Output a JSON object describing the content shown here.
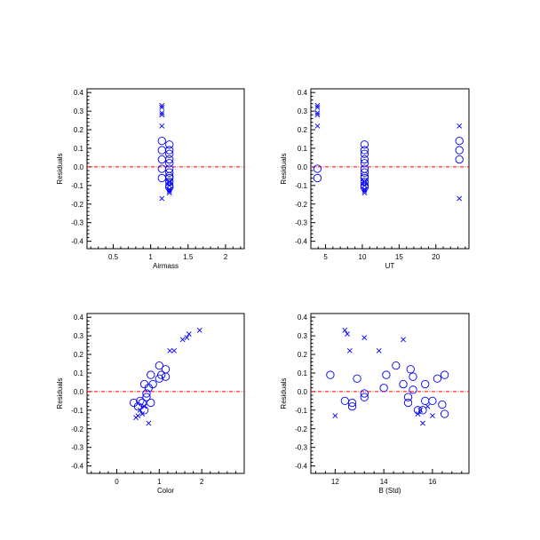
{
  "colors": {
    "marker": "#0000ff",
    "zero_line": "#ff0000",
    "axis": "#000000",
    "background": "#ffffff"
  },
  "chart_data": [
    {
      "type": "scatter",
      "xlabel": "Airmass",
      "ylabel": "Residuals",
      "xlim": [
        0.15,
        2.25
      ],
      "ylim": [
        -0.44,
        0.42
      ],
      "xticks": [
        0.5,
        1.0,
        1.5,
        2.0
      ],
      "xtick_labels": [
        "0.5",
        "1",
        "1.5",
        "2"
      ],
      "yticks": [
        -0.4,
        -0.3,
        -0.2,
        -0.1,
        0.0,
        0.1,
        0.2,
        0.3,
        0.4
      ],
      "ytick_labels": [
        "-0.4",
        "-0.3",
        "-0.2",
        "-0.1",
        "0.0",
        "0.1",
        "0.2",
        "0.3",
        "0.4"
      ],
      "zero_line": 0.0,
      "series": [
        {
          "marker": "cross",
          "points": [
            [
              1.15,
              0.33
            ],
            [
              1.15,
              0.32
            ],
            [
              1.15,
              0.29
            ],
            [
              1.15,
              0.28
            ],
            [
              1.15,
              0.22
            ],
            [
              1.15,
              -0.17
            ],
            [
              1.25,
              -0.08
            ],
            [
              1.25,
              -0.1
            ],
            [
              1.25,
              -0.12
            ],
            [
              1.25,
              -0.13
            ],
            [
              1.25,
              -0.14
            ],
            [
              1.25,
              -0.13
            ]
          ]
        },
        {
          "marker": "circle",
          "points": [
            [
              1.15,
              0.14
            ],
            [
              1.15,
              0.09
            ],
            [
              1.15,
              0.04
            ],
            [
              1.15,
              -0.01
            ],
            [
              1.15,
              -0.06
            ],
            [
              1.25,
              0.12
            ],
            [
              1.25,
              0.09
            ],
            [
              1.25,
              0.07
            ],
            [
              1.25,
              0.04
            ],
            [
              1.25,
              0.02
            ],
            [
              1.25,
              -0.01
            ],
            [
              1.25,
              -0.03
            ],
            [
              1.25,
              -0.05
            ],
            [
              1.25,
              -0.06
            ],
            [
              1.25,
              -0.08
            ],
            [
              1.25,
              -0.1
            ],
            [
              1.25,
              -0.11
            ]
          ]
        }
      ]
    },
    {
      "type": "scatter",
      "xlabel": "UT",
      "ylabel": "Residuals",
      "xlim": [
        3.0,
        24.5
      ],
      "ylim": [
        -0.44,
        0.42
      ],
      "xticks": [
        5,
        10,
        15,
        20
      ],
      "xtick_labels": [
        "5",
        "10",
        "15",
        "20"
      ],
      "yticks": [
        -0.4,
        -0.3,
        -0.2,
        -0.1,
        0.0,
        0.1,
        0.2,
        0.3,
        0.4
      ],
      "ytick_labels": [
        "-0.4",
        "-0.3",
        "-0.2",
        "-0.1",
        "0.0",
        "0.1",
        "0.2",
        "0.3",
        "0.4"
      ],
      "zero_line": 0.0,
      "series": [
        {
          "marker": "cross",
          "points": [
            [
              3.9,
              0.33
            ],
            [
              3.9,
              0.32
            ],
            [
              3.9,
              0.29
            ],
            [
              3.9,
              0.28
            ],
            [
              3.9,
              0.22
            ],
            [
              10.3,
              -0.08
            ],
            [
              10.3,
              -0.1
            ],
            [
              10.3,
              -0.12
            ],
            [
              10.3,
              -0.13
            ],
            [
              10.3,
              -0.14
            ],
            [
              23.2,
              0.22
            ],
            [
              23.2,
              -0.17
            ]
          ]
        },
        {
          "marker": "circle",
          "points": [
            [
              3.9,
              -0.01
            ],
            [
              3.9,
              -0.06
            ],
            [
              10.3,
              0.12
            ],
            [
              10.3,
              0.09
            ],
            [
              10.3,
              0.07
            ],
            [
              10.3,
              0.04
            ],
            [
              10.3,
              0.02
            ],
            [
              10.3,
              -0.01
            ],
            [
              10.3,
              -0.03
            ],
            [
              10.3,
              -0.05
            ],
            [
              10.3,
              -0.06
            ],
            [
              10.3,
              -0.08
            ],
            [
              10.3,
              -0.1
            ],
            [
              10.3,
              -0.11
            ],
            [
              23.2,
              0.14
            ],
            [
              23.2,
              0.09
            ],
            [
              23.2,
              0.04
            ]
          ]
        }
      ]
    },
    {
      "type": "scatter",
      "xlabel": "Color",
      "ylabel": "Residuals",
      "xlim": [
        -0.7,
        3.0
      ],
      "ylim": [
        -0.44,
        0.42
      ],
      "xticks": [
        0,
        1,
        2
      ],
      "xtick_labels": [
        "0",
        "1",
        "2"
      ],
      "yticks": [
        -0.4,
        -0.3,
        -0.2,
        -0.1,
        0.0,
        0.1,
        0.2,
        0.3,
        0.4
      ],
      "ytick_labels": [
        "-0.4",
        "-0.3",
        "-0.2",
        "-0.1",
        "0.0",
        "0.1",
        "0.2",
        "0.3",
        "0.4"
      ],
      "zero_line": 0.0,
      "series": [
        {
          "marker": "cross",
          "points": [
            [
              1.95,
              0.33
            ],
            [
              1.7,
              0.31
            ],
            [
              1.65,
              0.29
            ],
            [
              1.55,
              0.28
            ],
            [
              1.25,
              0.22
            ],
            [
              1.35,
              0.22
            ],
            [
              0.75,
              -0.17
            ],
            [
              0.45,
              -0.14
            ],
            [
              0.5,
              -0.13
            ],
            [
              0.6,
              -0.12
            ],
            [
              0.55,
              -0.1
            ],
            [
              0.65,
              -0.08
            ]
          ]
        },
        {
          "marker": "circle",
          "points": [
            [
              1.0,
              0.14
            ],
            [
              1.15,
              0.12
            ],
            [
              0.8,
              0.09
            ],
            [
              1.05,
              0.09
            ],
            [
              1.15,
              0.08
            ],
            [
              1.0,
              0.07
            ],
            [
              0.85,
              0.04
            ],
            [
              0.65,
              0.04
            ],
            [
              0.75,
              0.02
            ],
            [
              0.7,
              -0.01
            ],
            [
              0.7,
              -0.03
            ],
            [
              0.55,
              -0.05
            ],
            [
              0.4,
              -0.06
            ],
            [
              0.6,
              -0.06
            ],
            [
              0.8,
              -0.06
            ],
            [
              0.5,
              -0.08
            ],
            [
              0.65,
              -0.1
            ]
          ]
        }
      ]
    },
    {
      "type": "scatter",
      "xlabel": "B (Std)",
      "ylabel": "Residuals",
      "xlim": [
        11.0,
        17.5
      ],
      "ylim": [
        -0.44,
        0.42
      ],
      "xticks": [
        12,
        14,
        16
      ],
      "xtick_labels": [
        "12",
        "14",
        "16"
      ],
      "yticks": [
        -0.4,
        -0.3,
        -0.2,
        -0.1,
        0.0,
        0.1,
        0.2,
        0.3,
        0.4
      ],
      "ytick_labels": [
        "-0.4",
        "-0.3",
        "-0.2",
        "-0.1",
        "0.0",
        "0.1",
        "0.2",
        "0.3",
        "0.4"
      ],
      "zero_line": 0.0,
      "series": [
        {
          "marker": "cross",
          "points": [
            [
              12.4,
              0.33
            ],
            [
              12.5,
              0.31
            ],
            [
              13.2,
              0.29
            ],
            [
              14.8,
              0.28
            ],
            [
              12.6,
              0.22
            ],
            [
              13.8,
              0.22
            ],
            [
              12.0,
              -0.13
            ],
            [
              15.4,
              -0.12
            ],
            [
              15.5,
              -0.1
            ],
            [
              16.0,
              -0.13
            ],
            [
              15.6,
              -0.17
            ],
            [
              15.8,
              -0.08
            ]
          ]
        },
        {
          "marker": "circle",
          "points": [
            [
              11.8,
              0.09
            ],
            [
              12.4,
              -0.05
            ],
            [
              12.7,
              -0.06
            ],
            [
              12.7,
              -0.08
            ],
            [
              12.9,
              0.07
            ],
            [
              13.2,
              -0.01
            ],
            [
              13.2,
              -0.03
            ],
            [
              14.0,
              0.02
            ],
            [
              14.1,
              0.09
            ],
            [
              14.5,
              0.14
            ],
            [
              14.8,
              0.04
            ],
            [
              15.0,
              -0.03
            ],
            [
              15.0,
              -0.06
            ],
            [
              15.1,
              0.12
            ],
            [
              15.2,
              0.08
            ],
            [
              15.2,
              0.01
            ],
            [
              15.4,
              -0.1
            ],
            [
              15.6,
              -0.1
            ],
            [
              15.7,
              -0.05
            ],
            [
              15.7,
              0.04
            ],
            [
              16.0,
              -0.05
            ],
            [
              16.2,
              0.07
            ],
            [
              16.4,
              -0.07
            ],
            [
              16.5,
              -0.12
            ],
            [
              16.5,
              0.09
            ]
          ]
        }
      ]
    }
  ]
}
